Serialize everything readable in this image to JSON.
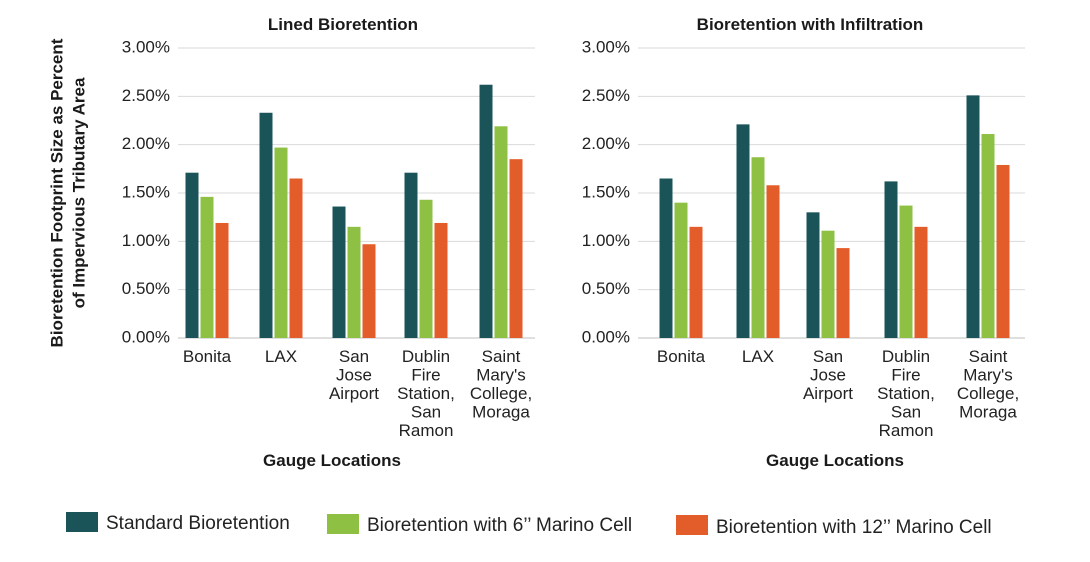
{
  "shared": {
    "ylabel_lines": [
      "Bioretention Footprint Size as Percent",
      "of Impervious Tributary Area"
    ]
  },
  "chart_data": [
    {
      "type": "bar",
      "title": "Lined Bioretention",
      "xlabel": "Gauge Locations",
      "ylabel": "Bioretention Footprint Size as Percent of Impervious Tributary Area",
      "ylim": [
        0,
        3.0
      ],
      "yticks": [
        "0.00%",
        "0.50%",
        "1.00%",
        "1.50%",
        "2.00%",
        "2.50%",
        "3.00%"
      ],
      "categories": [
        "Bonita",
        "LAX",
        "San Jose Airport",
        "Dublin Fire Station, San Ramon",
        "Saint Mary's College, Moraga"
      ],
      "category_lines": [
        [
          "Bonita"
        ],
        [
          "LAX"
        ],
        [
          "San",
          "Jose",
          "Airport"
        ],
        [
          "Dublin",
          "Fire",
          "Station,",
          "San",
          "Ramon"
        ],
        [
          "Saint",
          "Mary's",
          "College,",
          "Moraga"
        ]
      ],
      "series": [
        {
          "name": "Standard Bioretention",
          "color": "#1a5358",
          "values": [
            1.71,
            2.33,
            1.36,
            1.71,
            2.62
          ]
        },
        {
          "name": "Bioretention with 6'' Marino Cell",
          "color": "#8dc043",
          "values": [
            1.46,
            1.97,
            1.15,
            1.43,
            2.19
          ]
        },
        {
          "name": "Bioretention with 12'' Marino Cell",
          "color": "#e35d2b",
          "values": [
            1.19,
            1.65,
            0.97,
            1.19,
            1.85
          ]
        }
      ],
      "grid": true
    },
    {
      "type": "bar",
      "title": "Bioretention with Infiltration",
      "xlabel": "Gauge Locations",
      "ylim": [
        0,
        3.0
      ],
      "yticks": [
        "0.00%",
        "0.50%",
        "1.00%",
        "1.50%",
        "2.00%",
        "2.50%",
        "3.00%"
      ],
      "categories": [
        "Bonita",
        "LAX",
        "San Jose Airport",
        "Dublin Fire Station, San Ramon",
        "Saint Mary's College, Moraga"
      ],
      "category_lines": [
        [
          "Bonita"
        ],
        [
          "LAX"
        ],
        [
          "San",
          "Jose",
          "Airport"
        ],
        [
          "Dublin",
          "Fire",
          "Station,",
          "San",
          "Ramon"
        ],
        [
          "Saint",
          "Mary's",
          "College,",
          "Moraga"
        ]
      ],
      "series": [
        {
          "name": "Standard Bioretention",
          "color": "#1a5358",
          "values": [
            1.65,
            2.21,
            1.3,
            1.62,
            2.51
          ]
        },
        {
          "name": "Bioretention with 6'' Marino Cell",
          "color": "#8dc043",
          "values": [
            1.4,
            1.87,
            1.11,
            1.37,
            2.11
          ]
        },
        {
          "name": "Bioretention with 12'' Marino Cell",
          "color": "#e35d2b",
          "values": [
            1.15,
            1.58,
            0.93,
            1.15,
            1.79
          ]
        }
      ],
      "grid": true
    }
  ],
  "legend": {
    "placement": "bottom",
    "items": [
      {
        "label": "Standard Bioretention",
        "color": "#1a5358"
      },
      {
        "label": "Bioretention with 6’’ Marino Cell",
        "color": "#8dc043"
      },
      {
        "label": "Bioretention with 12’’ Marino Cell",
        "color": "#e35d2b"
      }
    ]
  }
}
